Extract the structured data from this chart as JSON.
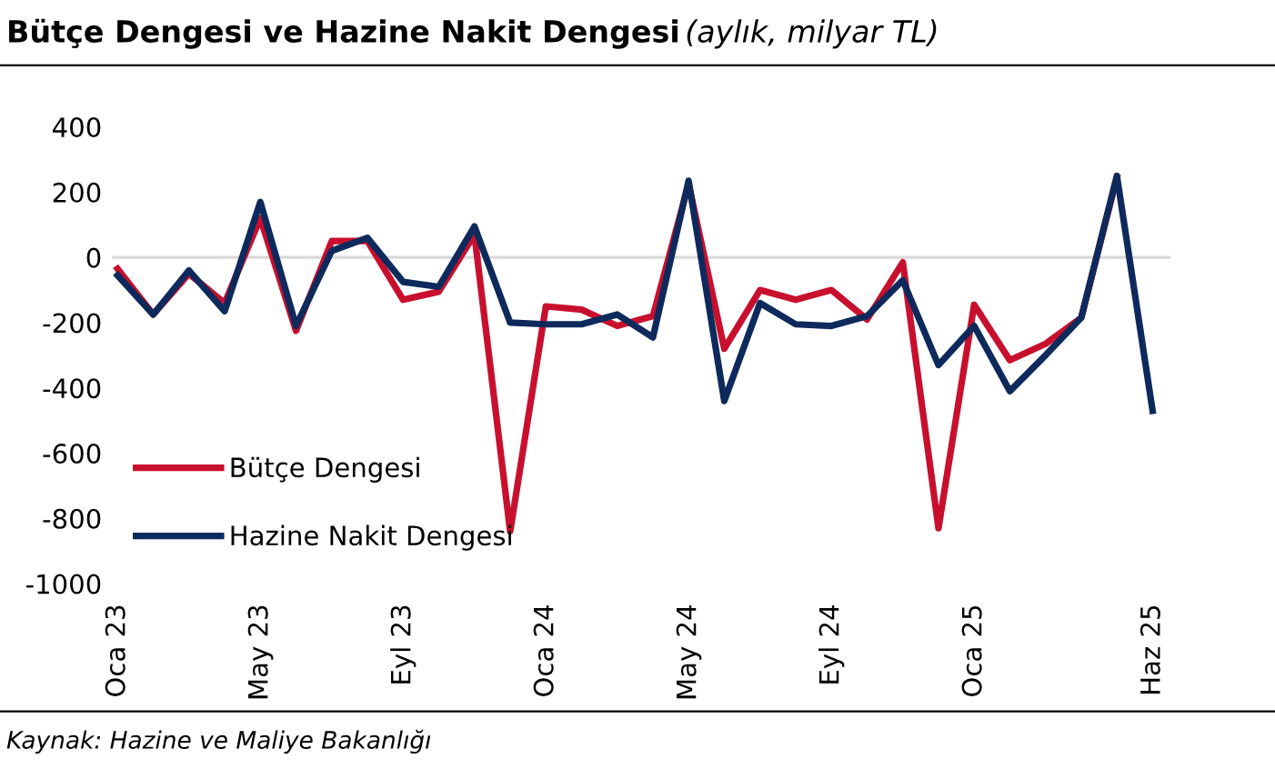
{
  "chart_data": {
    "type": "line",
    "title": "Bütçe Dengesi ve Hazine Nakit Dengesi",
    "subtitle": "(aylık, milyar TL)",
    "categories": [
      "Oca 23",
      null,
      null,
      null,
      "May 23",
      null,
      null,
      null,
      "Eyl 23",
      null,
      null,
      null,
      "Oca 24",
      null,
      null,
      null,
      "May 24",
      null,
      null,
      null,
      "Eyl 24",
      null,
      null,
      null,
      "Oca 25",
      null,
      null,
      null,
      null,
      "Haz 25"
    ],
    "series": [
      {
        "name": "Bütçe Dengesi",
        "color": "#c8102e",
        "values": [
          -35,
          -175,
          -50,
          -140,
          120,
          -225,
          50,
          50,
          -130,
          -105,
          70,
          -840,
          -150,
          -160,
          -210,
          -180,
          225,
          -280,
          -100,
          -130,
          -100,
          -190,
          -15,
          -830,
          -145,
          -315,
          -265,
          -185,
          245,
          null
        ]
      },
      {
        "name": "Hazine Nakit Dengesi",
        "color": "#0e2a5c",
        "values": [
          -55,
          -175,
          -40,
          -165,
          170,
          -210,
          20,
          60,
          -75,
          -90,
          95,
          -200,
          -205,
          -205,
          -175,
          -245,
          235,
          -440,
          -140,
          -205,
          -210,
          -180,
          -70,
          -330,
          -210,
          -410,
          -300,
          -185,
          250,
          -470
        ]
      }
    ],
    "ylim": [
      -1000,
      400
    ],
    "yticks": [
      -1000,
      -800,
      -600,
      -400,
      -200,
      0,
      200,
      400
    ],
    "grid": false,
    "legend": "bottom left",
    "marker": "none",
    "line_style": "solid",
    "ref_lines": [
      {
        "axis": "y",
        "value": 0,
        "color": "#d9d9d9"
      }
    ],
    "annotations": [
      "Kaynak: Hazine ve Maliye Bakanlığı"
    ]
  }
}
